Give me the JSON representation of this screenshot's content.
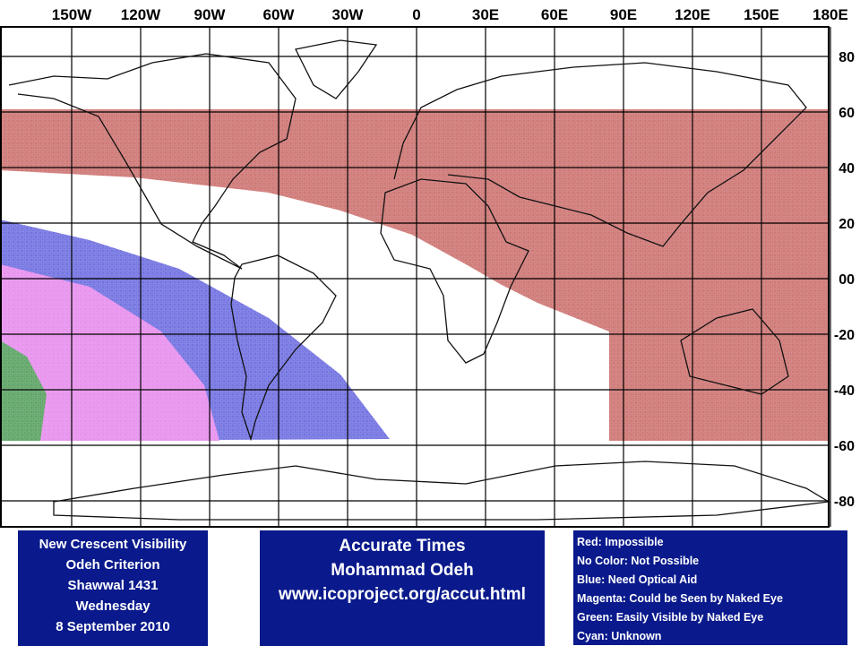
{
  "map": {
    "longitude_labels": [
      "150W",
      "120W",
      "90W",
      "60W",
      "30W",
      "0",
      "30E",
      "60E",
      "90E",
      "120E",
      "150E",
      "180E"
    ],
    "latitude_labels": [
      "80",
      "60",
      "40",
      "20",
      "00",
      "-20",
      "-40",
      "-60",
      "-80"
    ]
  },
  "info_box": {
    "lines": [
      "New Crescent Visibility",
      "Odeh Criterion",
      "Shawwal 1431",
      "Wednesday",
      "8 September 2010"
    ]
  },
  "author_box": {
    "lines": [
      "Accurate Times",
      "Mohammad Odeh",
      "www.icoproject.org/accut.html"
    ]
  },
  "legend": {
    "items": [
      "Red: Impossible",
      "No Color: Not Possible",
      "Blue: Need Optical Aid",
      "Magenta: Could be Seen by Naked Eye",
      "Green: Easily Visible by Naked Eye",
      "Cyan: Unknown"
    ]
  }
}
